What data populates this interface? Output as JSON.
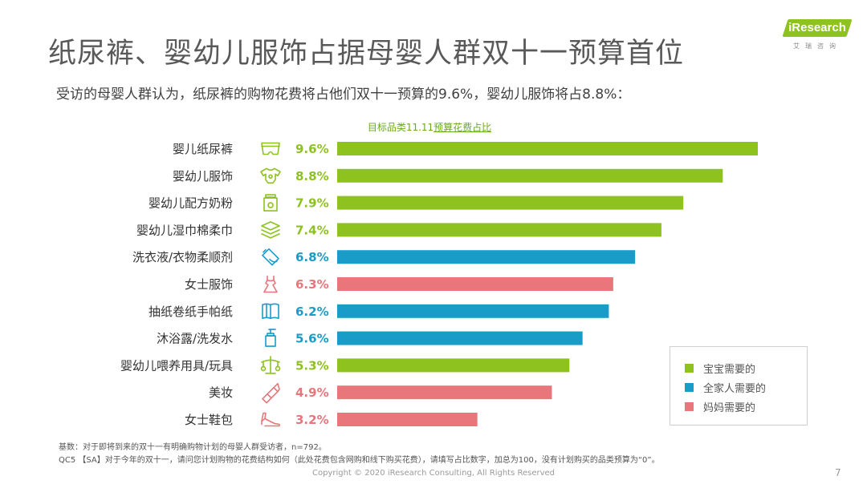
{
  "logo": {
    "text": "iResearch",
    "subtext": "艾瑞咨询"
  },
  "title": "纸尿裤、婴幼儿服饰占据母婴人群双十一预算首位",
  "subtitle": "受访的母婴人群认为，纸尿裤的购物花费将占他们双十一预算的9.6%，婴幼儿服饰将占8.8%：",
  "colors": {
    "baby": "#8dc21f",
    "family": "#1a9cc9",
    "mom": "#e8767a"
  },
  "chart_data": {
    "type": "bar",
    "orientation": "horizontal",
    "title": "目标品类11.11预算花费占比",
    "title_parts": {
      "plain": "目标品类11.11",
      "underlined": "预算花费占比"
    },
    "unit": "%",
    "xlim": [
      0,
      10
    ],
    "categories": [
      "婴儿纸尿裤",
      "婴幼儿服饰",
      "婴幼儿配方奶粉",
      "婴幼儿湿巾棉柔巾",
      "洗衣液/衣物柔顺剂",
      "女士服饰",
      "抽纸卷纸手帕纸",
      "沐浴露/洗发水",
      "婴幼儿喂养用具/玩具",
      "美妆",
      "女士鞋包"
    ],
    "values": [
      9.6,
      8.8,
      7.9,
      7.4,
      6.8,
      6.3,
      6.2,
      5.6,
      5.3,
      4.9,
      3.2
    ],
    "labels": [
      "9.6%",
      "8.8%",
      "7.9%",
      "7.4%",
      "6.8%",
      "6.3%",
      "6.2%",
      "5.6%",
      "5.3%",
      "4.9%",
      "3.2%"
    ],
    "groups": [
      "baby",
      "baby",
      "baby",
      "baby",
      "family",
      "mom",
      "family",
      "family",
      "baby",
      "mom",
      "mom"
    ],
    "icons": [
      "diaper-icon",
      "onesie-icon",
      "formula-can-icon",
      "wipes-stack-icon",
      "detergent-bottle-icon",
      "dress-icon",
      "tissue-roll-icon",
      "pump-bottle-icon",
      "baby-mobile-icon",
      "lipstick-icon",
      "high-heel-icon"
    ],
    "legend": [
      {
        "key": "baby",
        "label": "宝宝需要的"
      },
      {
        "key": "family",
        "label": "全家人需要的"
      },
      {
        "key": "mom",
        "label": "妈妈需要的"
      }
    ]
  },
  "footnotes": [
    "基数：对于即将到来的双十一有明确购物计划的母婴人群受访者，n=792。",
    "QC5 【SA】对于今年的双十一，请问您计划购物的花费结构如何（此处花费包含网购和线下购买花费），请填写占比数字，加总为100，没有计划购买的品类预算为“0”。"
  ],
  "copyright": "Copyright © 2020 iResearch Consulting, All Rights Reserved",
  "page_number": "7"
}
